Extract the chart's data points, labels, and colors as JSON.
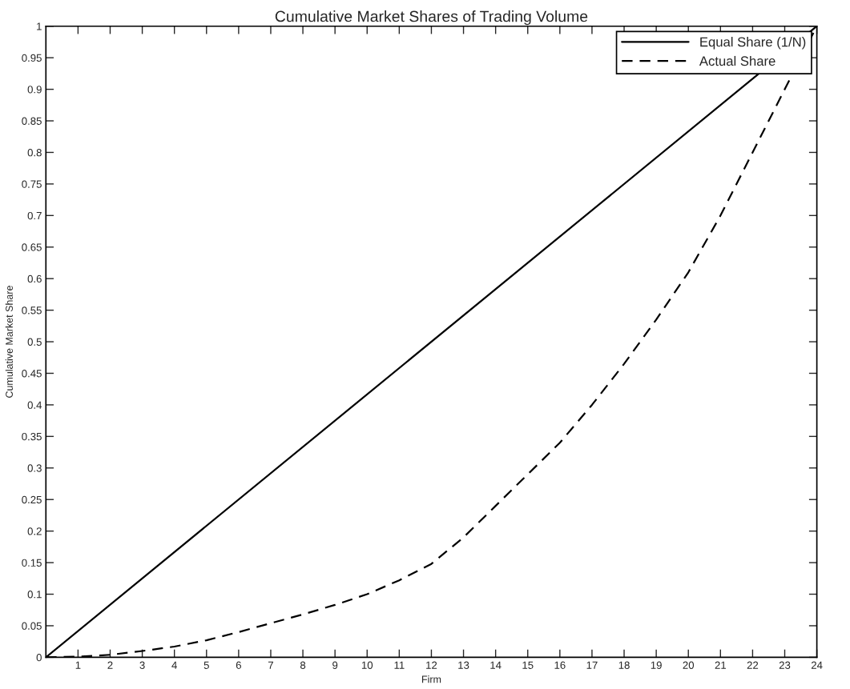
{
  "chart_data": {
    "type": "line",
    "title": "Cumulative Market Shares of Trading Volume",
    "xlabel": "Firm",
    "ylabel": "Cumulative Market Share",
    "series": [
      {
        "name": "Equal Share (1/N)",
        "color": "#000000",
        "line_style": "solid",
        "x": [
          0,
          24
        ],
        "values": [
          0,
          1
        ]
      },
      {
        "name": "Actual Share",
        "color": "#000000",
        "line_style": "dashed",
        "x": [
          0,
          1,
          2,
          3,
          4,
          5,
          6,
          7,
          8,
          9,
          10,
          11,
          12,
          13,
          14,
          15,
          16,
          17,
          18,
          19,
          20,
          21,
          22,
          23,
          24
        ],
        "values": [
          0,
          0.001,
          0.004,
          0.01,
          0.017,
          0.027,
          0.04,
          0.054,
          0.068,
          0.083,
          0.1,
          0.122,
          0.148,
          0.19,
          0.24,
          0.29,
          0.34,
          0.4,
          0.465,
          0.535,
          0.61,
          0.7,
          0.8,
          0.9,
          1.0
        ]
      }
    ],
    "xlim": [
      0,
      24
    ],
    "xticks": [
      1,
      2,
      3,
      4,
      5,
      6,
      7,
      8,
      9,
      10,
      11,
      12,
      13,
      14,
      15,
      16,
      17,
      18,
      19,
      20,
      21,
      22,
      23,
      24
    ],
    "ylim": [
      0,
      1
    ],
    "yticks": [
      0,
      0.05,
      0.1,
      0.15,
      0.2,
      0.25,
      0.3,
      0.35,
      0.4,
      0.45,
      0.5,
      0.55,
      0.6,
      0.65,
      0.7,
      0.75,
      0.8,
      0.85,
      0.9,
      0.95,
      1
    ],
    "grid": false,
    "legend": "top right",
    "marker": "none"
  }
}
